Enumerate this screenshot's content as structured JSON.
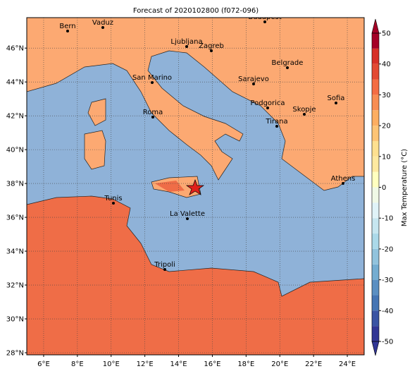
{
  "title": "Forecast of 2020102800 (f072-096)",
  "map": {
    "lon_ticks": [
      {
        "value": 6,
        "label": "6°E"
      },
      {
        "value": 8,
        "label": "8°E"
      },
      {
        "value": 10,
        "label": "10°E"
      },
      {
        "value": 12,
        "label": "12°E"
      },
      {
        "value": 14,
        "label": "14°E"
      },
      {
        "value": 16,
        "label": "16°E"
      },
      {
        "value": 18,
        "label": "18°E"
      },
      {
        "value": 20,
        "label": "20°E"
      },
      {
        "value": 22,
        "label": "22°E"
      },
      {
        "value": 24,
        "label": "24°E"
      }
    ],
    "lat_ticks": [
      {
        "value": 28,
        "label": "28°N"
      },
      {
        "value": 30,
        "label": "30°N"
      },
      {
        "value": 32,
        "label": "32°N"
      },
      {
        "value": 34,
        "label": "34°N"
      },
      {
        "value": 36,
        "label": "36°N"
      },
      {
        "value": 38,
        "label": "38°N"
      },
      {
        "value": 40,
        "label": "40°N"
      },
      {
        "value": 42,
        "label": "42°N"
      },
      {
        "value": 44,
        "label": "44°N"
      },
      {
        "value": 46,
        "label": "46°N"
      }
    ],
    "lonlim": [
      5,
      25
    ],
    "latlim": [
      27.875,
      47.8
    ],
    "grid": true,
    "cities": [
      "Bern",
      "Vaduz",
      "Budapest",
      "Ljubljana",
      "Zagreb",
      "San Marino",
      "Belgrade",
      "Sarajevo",
      "Sofia",
      "Podgorica",
      "Skopje",
      "Roma",
      "Tirana",
      "Athens",
      "Tunis",
      "La Valette",
      "Tripoli"
    ]
  },
  "colorbar": {
    "label": "Max Temperature (°C)",
    "lim": [
      -50,
      50
    ],
    "ticks": [
      -50,
      -40,
      -30,
      -20,
      -10,
      0,
      10,
      20,
      30,
      40,
      50
    ],
    "colors": [
      "#313695",
      "#3a54a4",
      "#4575b4",
      "#5b8fc2",
      "#74add1",
      "#91c3dd",
      "#abd9e9",
      "#c6e6f0",
      "#e0f3f8",
      "#f0f9e6",
      "#ffffbf",
      "#fee9a0",
      "#fee090",
      "#fdc475",
      "#fdae61",
      "#f88d52",
      "#f46d43",
      "#e34a33",
      "#d73027",
      "#a50026"
    ]
  }
}
